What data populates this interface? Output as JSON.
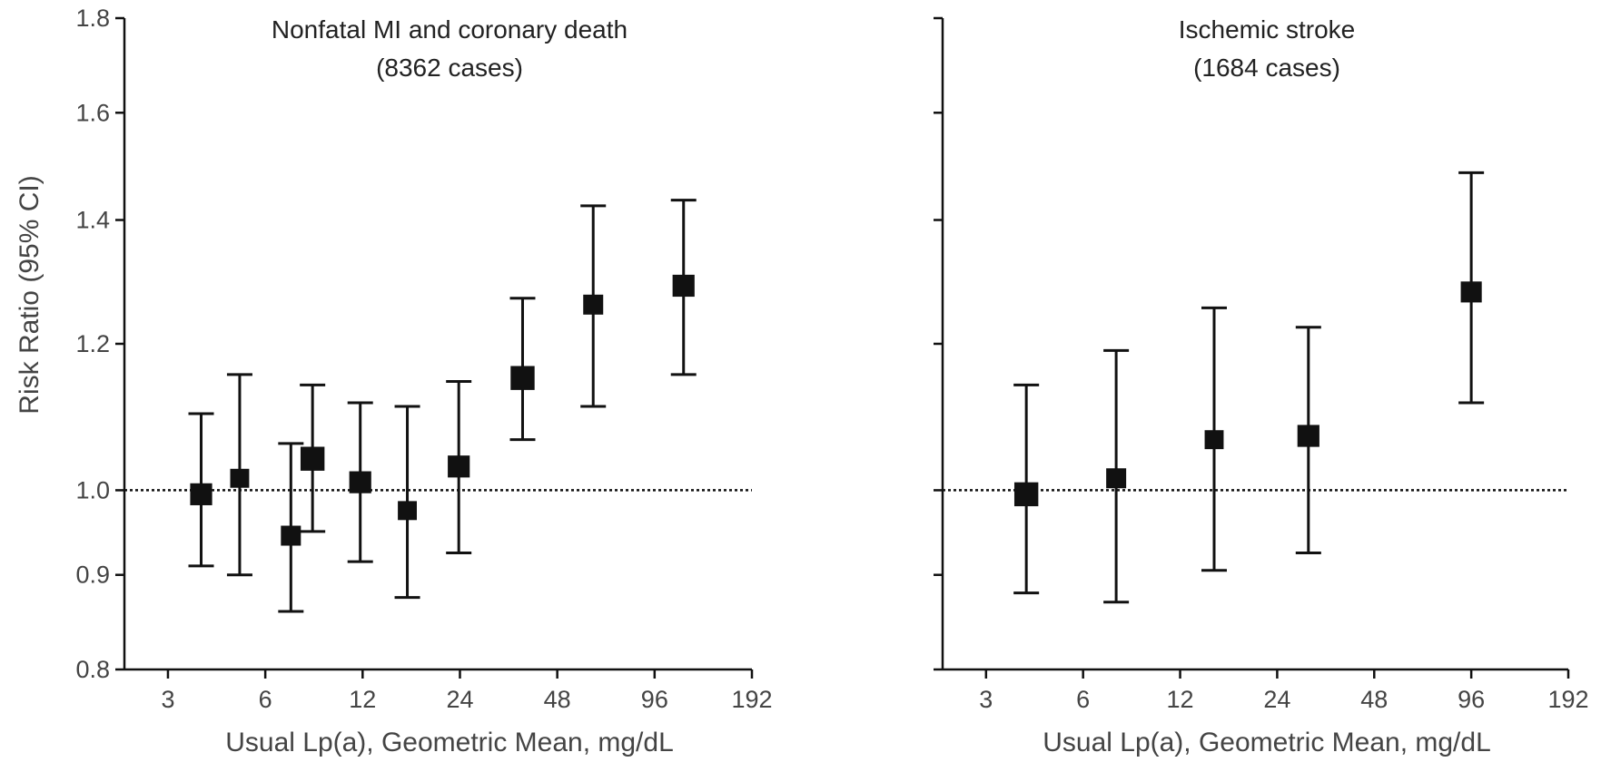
{
  "chart_data": [
    {
      "type": "scatter",
      "title": "Nonfatal MI and coronary death",
      "subtitle": "(8362 cases)",
      "xlabel": "Usual Lp(a), Geometric Mean, mg/dL",
      "ylabel": "Risk Ratio (95% CI)",
      "x_scale": "log2",
      "y_scale": "log",
      "xlim": [
        2.2,
        192
      ],
      "ylim": [
        0.8,
        1.8
      ],
      "xticks": [
        3,
        6,
        12,
        24,
        48,
        96,
        192
      ],
      "xtick_labels": [
        "3",
        "6",
        "12",
        "24",
        "48",
        "96",
        "192"
      ],
      "yticks": [
        0.8,
        0.9,
        1.0,
        1.2,
        1.4,
        1.6,
        1.8
      ],
      "ytick_labels": [
        "0.8",
        "0.9",
        "1.0",
        "1.2",
        "1.4",
        "1.6",
        "1.8"
      ],
      "reference_line": 1.0,
      "show_y_tick_labels": true,
      "points": [
        {
          "x": 3.8,
          "y": 0.995,
          "lower": 0.91,
          "upper": 1.1,
          "size": 1.1
        },
        {
          "x": 5.0,
          "y": 1.015,
          "lower": 0.9,
          "upper": 1.155,
          "size": 0.95
        },
        {
          "x": 7.2,
          "y": 0.945,
          "lower": 0.86,
          "upper": 1.06,
          "size": 1.0
        },
        {
          "x": 8.4,
          "y": 1.04,
          "lower": 0.95,
          "upper": 1.14,
          "size": 1.2
        },
        {
          "x": 11.8,
          "y": 1.01,
          "lower": 0.915,
          "upper": 1.115,
          "size": 1.1
        },
        {
          "x": 16.5,
          "y": 0.975,
          "lower": 0.875,
          "upper": 1.11,
          "size": 0.95
        },
        {
          "x": 23.8,
          "y": 1.03,
          "lower": 0.925,
          "upper": 1.145,
          "size": 1.1
        },
        {
          "x": 37.5,
          "y": 1.15,
          "lower": 1.065,
          "upper": 1.27,
          "size": 1.2
        },
        {
          "x": 62,
          "y": 1.26,
          "lower": 1.11,
          "upper": 1.425,
          "size": 1.0
        },
        {
          "x": 118,
          "y": 1.29,
          "lower": 1.155,
          "upper": 1.435,
          "size": 1.1
        }
      ]
    },
    {
      "type": "scatter",
      "title": "Ischemic stroke",
      "subtitle": "(1684 cases)",
      "xlabel": "Usual Lp(a), Geometric Mean, mg/dL",
      "ylabel": "",
      "x_scale": "log2",
      "y_scale": "log",
      "xlim": [
        2.2,
        192
      ],
      "ylim": [
        0.8,
        1.8
      ],
      "xticks": [
        3,
        6,
        12,
        24,
        48,
        96,
        192
      ],
      "xtick_labels": [
        "3",
        "6",
        "12",
        "24",
        "48",
        "96",
        "192"
      ],
      "yticks": [
        0.8,
        0.9,
        1.0,
        1.2,
        1.4,
        1.6,
        1.8
      ],
      "ytick_labels": [],
      "reference_line": 1.0,
      "show_y_tick_labels": false,
      "points": [
        {
          "x": 4.0,
          "y": 0.995,
          "lower": 0.88,
          "upper": 1.14,
          "size": 1.2
        },
        {
          "x": 7.6,
          "y": 1.015,
          "lower": 0.87,
          "upper": 1.19,
          "size": 1.0
        },
        {
          "x": 15.3,
          "y": 1.065,
          "lower": 0.905,
          "upper": 1.255,
          "size": 0.95
        },
        {
          "x": 30,
          "y": 1.07,
          "lower": 0.925,
          "upper": 1.225,
          "size": 1.1
        },
        {
          "x": 96,
          "y": 1.28,
          "lower": 1.115,
          "upper": 1.485,
          "size": 1.05
        }
      ]
    }
  ]
}
